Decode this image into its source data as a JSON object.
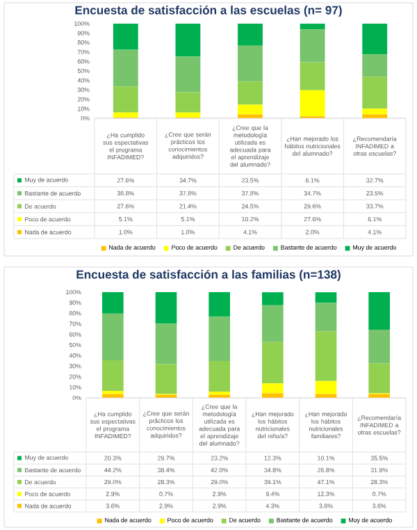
{
  "chart_data": [
    {
      "type": "bar",
      "stacked": true,
      "title": "Encuesta de satisfacción a las escuelas (n= 97)",
      "categories": [
        "¿Ha cumplido sus espectativas el programa INFADIMED?",
        "¿Cree que serán prácticos los conocimientos adquiridos?",
        "¿Cree que la metodología utilizada es adecuada para el aprendizaje del alumnado?",
        "¿Han mejorado los hábitos nutricionales del alumnado?",
        "¿Recomendaría INFADIMED a otras escuelas?"
      ],
      "series": [
        {
          "name": "Nada de acuerdo",
          "color": "#ffc000",
          "values": [
            1.0,
            1.0,
            4.1,
            2.0,
            4.1
          ],
          "value_labels": [
            "1.0%",
            "1.0%",
            "4.1%",
            "2.0%",
            "4.1%"
          ]
        },
        {
          "name": "Poco de acuerdo",
          "color": "#ffff00",
          "values": [
            5.1,
            5.1,
            10.2,
            27.6,
            6.1
          ],
          "value_labels": [
            "5.1%",
            "5.1%",
            "10.2%",
            "27.6%",
            "6.1%"
          ]
        },
        {
          "name": "De acuerdo",
          "color": "#92d050",
          "values": [
            27.6,
            21.4,
            24.5,
            29.6,
            33.7
          ],
          "value_labels": [
            "27.6%",
            "21.4%",
            "24.5%",
            "29.6%",
            "33.7%"
          ]
        },
        {
          "name": "Bastante de acuerdo",
          "color": "#78c46c",
          "values": [
            38.8,
            37.8,
            37.8,
            34.7,
            23.5
          ],
          "value_labels": [
            "38.8%",
            "37.8%",
            "37.8%",
            "34.7%",
            "23.5%"
          ]
        },
        {
          "name": "Muy de acuerdo",
          "color": "#00b050",
          "values": [
            27.6,
            34.7,
            23.5,
            6.1,
            32.7
          ],
          "value_labels": [
            "27.6%",
            "34.7%",
            "23.5%",
            "6.1%",
            "32.7%"
          ]
        }
      ],
      "ylim": [
        0,
        100
      ],
      "yticks": [
        {
          "value": 0,
          "label": "0%"
        },
        {
          "value": 10,
          "label": "10%"
        },
        {
          "value": 20,
          "label": "20%"
        },
        {
          "value": 30,
          "label": "30%"
        },
        {
          "value": 40,
          "label": "40%"
        },
        {
          "value": 50,
          "label": "50%"
        },
        {
          "value": 60,
          "label": "60%"
        },
        {
          "value": 70,
          "label": "70%"
        },
        {
          "value": 80,
          "label": "80%"
        },
        {
          "value": 90,
          "label": "90%"
        },
        {
          "value": 100,
          "label": "100%"
        }
      ],
      "legend": "bottom"
    },
    {
      "type": "bar",
      "stacked": true,
      "title": "Encuesta de satisfacción a las familias (n=138)",
      "categories": [
        "¿Ha cumplido sus espectativas el programa INFADIMED?",
        "¿Cree que serán prácticos los conocimientos adquiridos?",
        "¿Cree que la metodología utilizada es adecuada para el aprendizaje del alumnado?",
        "¿Han mejorado los hábitos nutricionales del niño/a?",
        "¿Han mejorado los hábitos nutricionales familiares?",
        "¿Recomendaría INFADIMED a otras escuelas?"
      ],
      "series": [
        {
          "name": "Nada de acuerdo",
          "color": "#ffc000",
          "values": [
            3.6,
            2.9,
            2.9,
            4.3,
            3.6,
            3.6
          ],
          "value_labels": [
            "3.6%",
            "2.9%",
            "2.9%",
            "4.3%",
            "3.6%",
            "3.6%"
          ]
        },
        {
          "name": "Poco de acuerdo",
          "color": "#ffff00",
          "values": [
            2.9,
            0.7,
            2.9,
            9.4,
            12.3,
            0.7
          ],
          "value_labels": [
            "2.9%",
            "0.7%",
            "2.9%",
            "9.4%",
            "12.3%",
            "0.7%"
          ]
        },
        {
          "name": "De acuerdo",
          "color": "#92d050",
          "values": [
            29.0,
            28.3,
            29.0,
            39.1,
            47.1,
            28.3
          ],
          "value_labels": [
            "29.0%",
            "28.3%",
            "29.0%",
            "39.1%",
            "47.1%",
            "28.3%"
          ]
        },
        {
          "name": "Bastante de acuerdo",
          "color": "#78c46c",
          "values": [
            44.2,
            38.4,
            42.0,
            34.8,
            26.8,
            31.9
          ],
          "value_labels": [
            "44.2%",
            "38.4%",
            "42.0%",
            "34.8%",
            "26.8%",
            "31.9%"
          ]
        },
        {
          "name": "Muy de acuerdo",
          "color": "#00b050",
          "values": [
            20.3,
            29.7,
            23.2,
            12.3,
            10.1,
            35.5
          ],
          "value_labels": [
            "20.3%",
            "29.7%",
            "23.2%",
            "12.3%",
            "10.1%",
            "35.5%"
          ]
        }
      ],
      "ylim": [
        0,
        100
      ],
      "yticks": [
        {
          "value": 0,
          "label": "0%"
        },
        {
          "value": 10,
          "label": "10%"
        },
        {
          "value": 20,
          "label": "20%"
        },
        {
          "value": 30,
          "label": "30%"
        },
        {
          "value": 40,
          "label": "40%"
        },
        {
          "value": 50,
          "label": "50%"
        },
        {
          "value": 60,
          "label": "60%"
        },
        {
          "value": 70,
          "label": "70%"
        },
        {
          "value": 80,
          "label": "80%"
        },
        {
          "value": 90,
          "label": "90%"
        },
        {
          "value": 100,
          "label": "100%"
        }
      ],
      "legend": "bottom"
    }
  ]
}
